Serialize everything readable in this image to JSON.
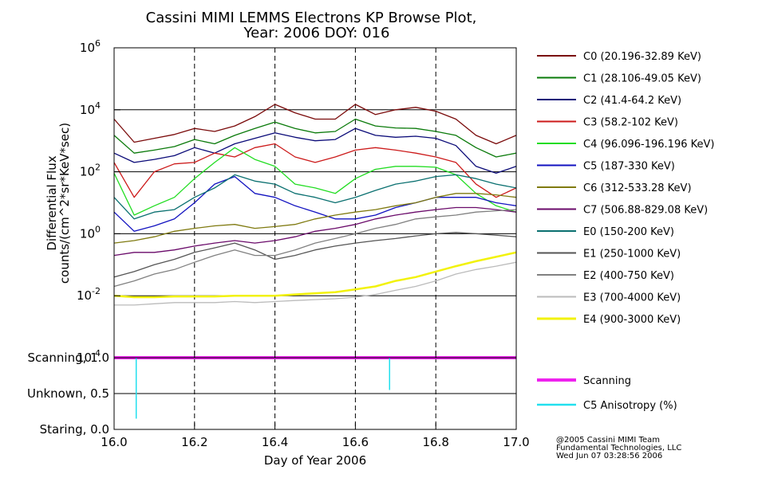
{
  "title_line1": "Cassini MIMI LEMMS Electrons KP Browse Plot,",
  "title_line2": "Year: 2006 DOY: 016",
  "footer": [
    "@2005 Cassini MIMI Team",
    "Fundamental Technologies, LLC",
    "Wed Jun 07 03:28:56 2006"
  ],
  "chart_data": [
    {
      "type": "line",
      "yscale": "log",
      "xlim": [
        16.0,
        17.0
      ],
      "ylim": [
        0.0001,
        1000000
      ],
      "xlabel": "Day of Year 2006",
      "ylabel": [
        "Differential Flux",
        "counts/(cm^2*sr*KeV*sec)"
      ],
      "y_ticks": [
        {
          "base": "10",
          "exp": "-4",
          "value": 0.0001
        },
        {
          "base": "10",
          "exp": "-2",
          "value": 0.01
        },
        {
          "base": "10",
          "exp": "0",
          "value": 1
        },
        {
          "base": "10",
          "exp": "2",
          "value": 100
        },
        {
          "base": "10",
          "exp": "4",
          "value": 10000
        },
        {
          "base": "10",
          "exp": "6",
          "value": 1000000
        }
      ],
      "grid": {
        "horizontal_at": [
          0.01,
          1,
          100,
          10000
        ],
        "vertical_dashed_at": [
          16.2,
          16.4,
          16.6,
          16.8
        ]
      },
      "legend_placement": "right",
      "x": [
        16.0,
        16.05,
        16.1,
        16.15,
        16.2,
        16.25,
        16.3,
        16.35,
        16.4,
        16.45,
        16.5,
        16.55,
        16.6,
        16.65,
        16.7,
        16.75,
        16.8,
        16.85,
        16.9,
        16.95,
        17.0
      ],
      "series": [
        {
          "name": "C0 (20.196-32.89 KeV)",
          "color": "#7a0a0a",
          "values": [
            5000,
            900,
            1200,
            1600,
            2500,
            2000,
            3000,
            6000,
            15000,
            8000,
            5000,
            5000,
            15000,
            7000,
            10000,
            12000,
            9000,
            5000,
            1500,
            800,
            1500
          ]
        },
        {
          "name": "C1 (28.106-49.05 KeV)",
          "color": "#0a7a0a",
          "values": [
            1500,
            400,
            500,
            650,
            1100,
            800,
            1500,
            2500,
            4000,
            2500,
            1800,
            2000,
            5000,
            3000,
            2600,
            2500,
            2000,
            1500,
            600,
            300,
            400
          ]
        },
        {
          "name": "C2 (41.4-64.2 KeV)",
          "color": "#0a0a78",
          "values": [
            400,
            200,
            250,
            330,
            600,
            400,
            800,
            1200,
            1800,
            1300,
            1000,
            1100,
            2500,
            1500,
            1300,
            1400,
            1200,
            700,
            150,
            90,
            150
          ]
        },
        {
          "name": "C3 (58.2-102 KeV)",
          "color": "#cc1a1a",
          "values": [
            200,
            15,
            100,
            180,
            200,
            400,
            300,
            600,
            800,
            300,
            200,
            300,
            500,
            600,
            500,
            400,
            300,
            200,
            40,
            15,
            30
          ]
        },
        {
          "name": "C4 (96.096-196.196 KeV)",
          "color": "#22dd22",
          "values": [
            90,
            4,
            8,
            15,
            60,
            200,
            600,
            250,
            150,
            40,
            30,
            20,
            60,
            120,
            150,
            150,
            140,
            80,
            20,
            8,
            5
          ]
        },
        {
          "name": "C5 (187-330 KeV)",
          "color": "#1212c0",
          "values": [
            5,
            1.2,
            1.8,
            3,
            10,
            40,
            70,
            20,
            15,
            8,
            5,
            3,
            3,
            4,
            7,
            10,
            15,
            15,
            15,
            10,
            8
          ]
        },
        {
          "name": "C6 (312-533.28 KeV)",
          "color": "#7f7a10",
          "values": [
            0.5,
            0.6,
            0.8,
            1.2,
            1.5,
            1.8,
            2,
            1.5,
            1.7,
            2,
            3,
            4,
            5,
            6,
            8,
            10,
            15,
            20,
            20,
            18,
            15
          ]
        },
        {
          "name": "C7 (506.88-829.08 KeV)",
          "color": "#6a0a6a",
          "values": [
            0.2,
            0.25,
            0.25,
            0.3,
            0.4,
            0.5,
            0.6,
            0.5,
            0.6,
            0.8,
            1.2,
            1.5,
            2,
            3,
            4,
            5,
            6,
            7,
            7,
            6,
            5
          ]
        },
        {
          "name": "E0 (150-200 KeV)",
          "color": "#0a7070",
          "values": [
            15,
            3,
            5,
            6,
            15,
            30,
            80,
            50,
            40,
            20,
            15,
            10,
            15,
            25,
            40,
            50,
            70,
            80,
            60,
            40,
            30
          ]
        },
        {
          "name": "E1 (250-1000 KeV)",
          "color": "#555555",
          "values": [
            0.04,
            0.06,
            0.1,
            0.15,
            0.25,
            0.35,
            0.5,
            0.3,
            0.15,
            0.2,
            0.3,
            0.4,
            0.5,
            0.6,
            0.7,
            0.85,
            1,
            1.1,
            1,
            0.9,
            0.8
          ]
        },
        {
          "name": "E2 (400-750 KeV)",
          "color": "#808080",
          "values": [
            0.02,
            0.03,
            0.05,
            0.07,
            0.12,
            0.2,
            0.3,
            0.2,
            0.2,
            0.3,
            0.5,
            0.7,
            1,
            1.5,
            2,
            3,
            3.5,
            4,
            5,
            5.5,
            6
          ]
        },
        {
          "name": "E3 (700-4000 KeV)",
          "color": "#bbbbbb",
          "values": [
            0.005,
            0.005,
            0.0055,
            0.006,
            0.006,
            0.006,
            0.0065,
            0.006,
            0.0065,
            0.007,
            0.0075,
            0.008,
            0.009,
            0.011,
            0.015,
            0.02,
            0.03,
            0.05,
            0.07,
            0.09,
            0.12
          ]
        },
        {
          "name": "E4 (900-3000 KeV)",
          "color": "#f2f20a",
          "values": [
            0.01,
            0.009,
            0.009,
            0.0095,
            0.0095,
            0.0095,
            0.01,
            0.01,
            0.01,
            0.011,
            0.012,
            0.013,
            0.016,
            0.02,
            0.03,
            0.04,
            0.06,
            0.09,
            0.13,
            0.18,
            0.25
          ]
        }
      ]
    },
    {
      "type": "line",
      "xlim": [
        16.0,
        17.0
      ],
      "ylim": [
        0.0,
        1.0
      ],
      "y_tick_labels": [
        "Staring, 0.0",
        "Unknown, 0.5",
        "Scanning, 1.0"
      ],
      "y_tick_values": [
        0.0,
        0.5,
        1.0
      ],
      "x_ticks": [
        16.0,
        16.2,
        16.4,
        16.6,
        16.8,
        17.0
      ],
      "x_tick_labels": [
        "16.0",
        "16.2",
        "16.4",
        "16.6",
        "16.8",
        "17.0"
      ],
      "grid": {
        "horizontal_at": [
          0.5
        ],
        "vertical_dashed_at": [
          16.2,
          16.4,
          16.6,
          16.8
        ]
      },
      "legend_placement": "right",
      "series": [
        {
          "name": "Scanning",
          "color": "#ee22ee",
          "x": [
            16.0,
            17.0
          ],
          "values": [
            1.0,
            1.0
          ]
        },
        {
          "name": "C5 Anisotropy (%)",
          "color": "#22e0ee",
          "spikes": [
            {
              "x": 16.055,
              "to": 0.15
            },
            {
              "x": 16.685,
              "to": 0.55
            }
          ]
        }
      ]
    }
  ]
}
